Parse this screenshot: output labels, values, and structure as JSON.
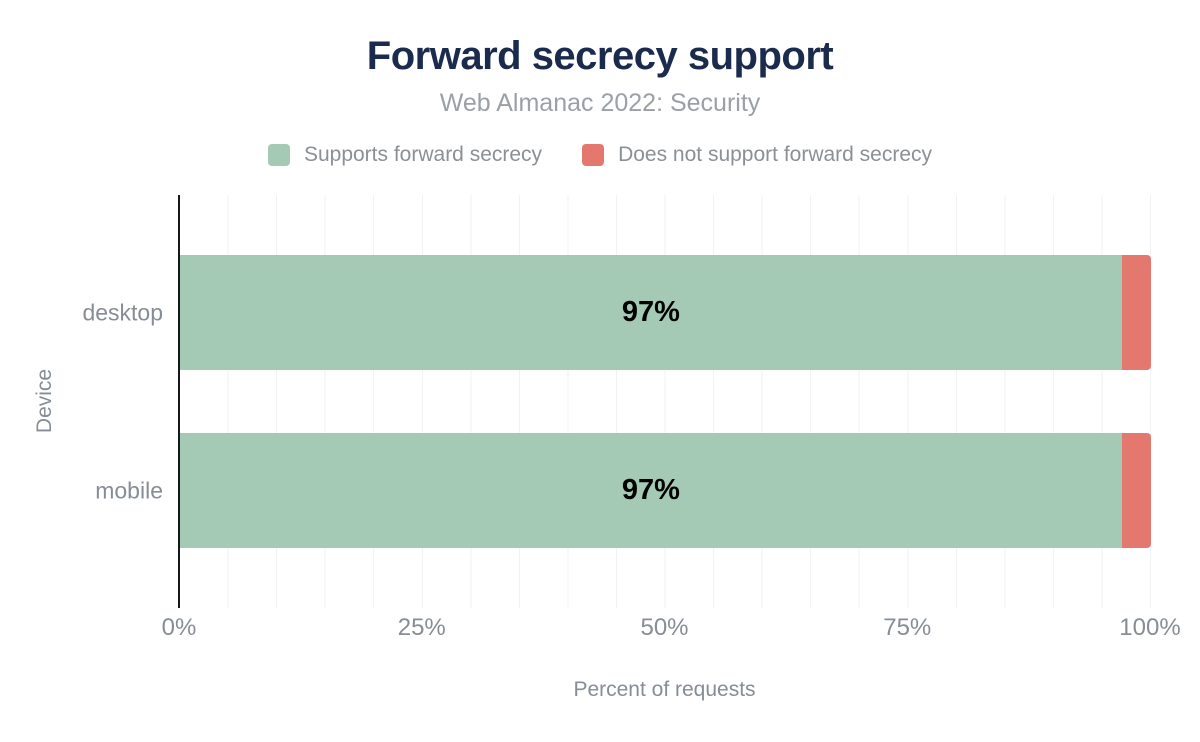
{
  "header": {
    "title": "Forward secrecy support",
    "subtitle": "Web Almanac 2022: Security"
  },
  "legend": {
    "items": [
      {
        "label": "Supports forward secrecy",
        "color": "#a4c9b5"
      },
      {
        "label": "Does not support forward secrecy",
        "color": "#e4786e"
      }
    ]
  },
  "chart_data": {
    "type": "bar",
    "orientation": "horizontal",
    "stacked": true,
    "title": "Forward secrecy support",
    "subtitle": "Web Almanac 2022: Security",
    "categories": [
      "desktop",
      "mobile"
    ],
    "series": [
      {
        "name": "Supports forward secrecy",
        "color": "#a4c9b5",
        "values": [
          97,
          97
        ]
      },
      {
        "name": "Does not support forward secrecy",
        "color": "#e4786e",
        "values": [
          3,
          3
        ]
      }
    ],
    "bar_labels": [
      "97%",
      "97%"
    ],
    "xlabel": "Percent of requests",
    "ylabel": "Device",
    "xlim": [
      0,
      100
    ],
    "x_ticks": [
      {
        "label": "0%",
        "value": 0
      },
      {
        "label": "25%",
        "value": 25
      },
      {
        "label": "50%",
        "value": 50
      },
      {
        "label": "75%",
        "value": 75
      },
      {
        "label": "100%",
        "value": 100
      }
    ],
    "grid": true,
    "minor_grid_step": 5,
    "legend_position": "top"
  },
  "colors": {
    "background": "#ffffff",
    "title": "#1b2b4d",
    "subtitle": "#9aa0a5",
    "axis_text": "#878d96",
    "legend_text": "#8b9095",
    "bar_label": "#000000",
    "grid_line": "#f1f2f4",
    "axis_line": "#15191d",
    "supports": "#a4c9b5",
    "not_supports": "#e4786e"
  }
}
